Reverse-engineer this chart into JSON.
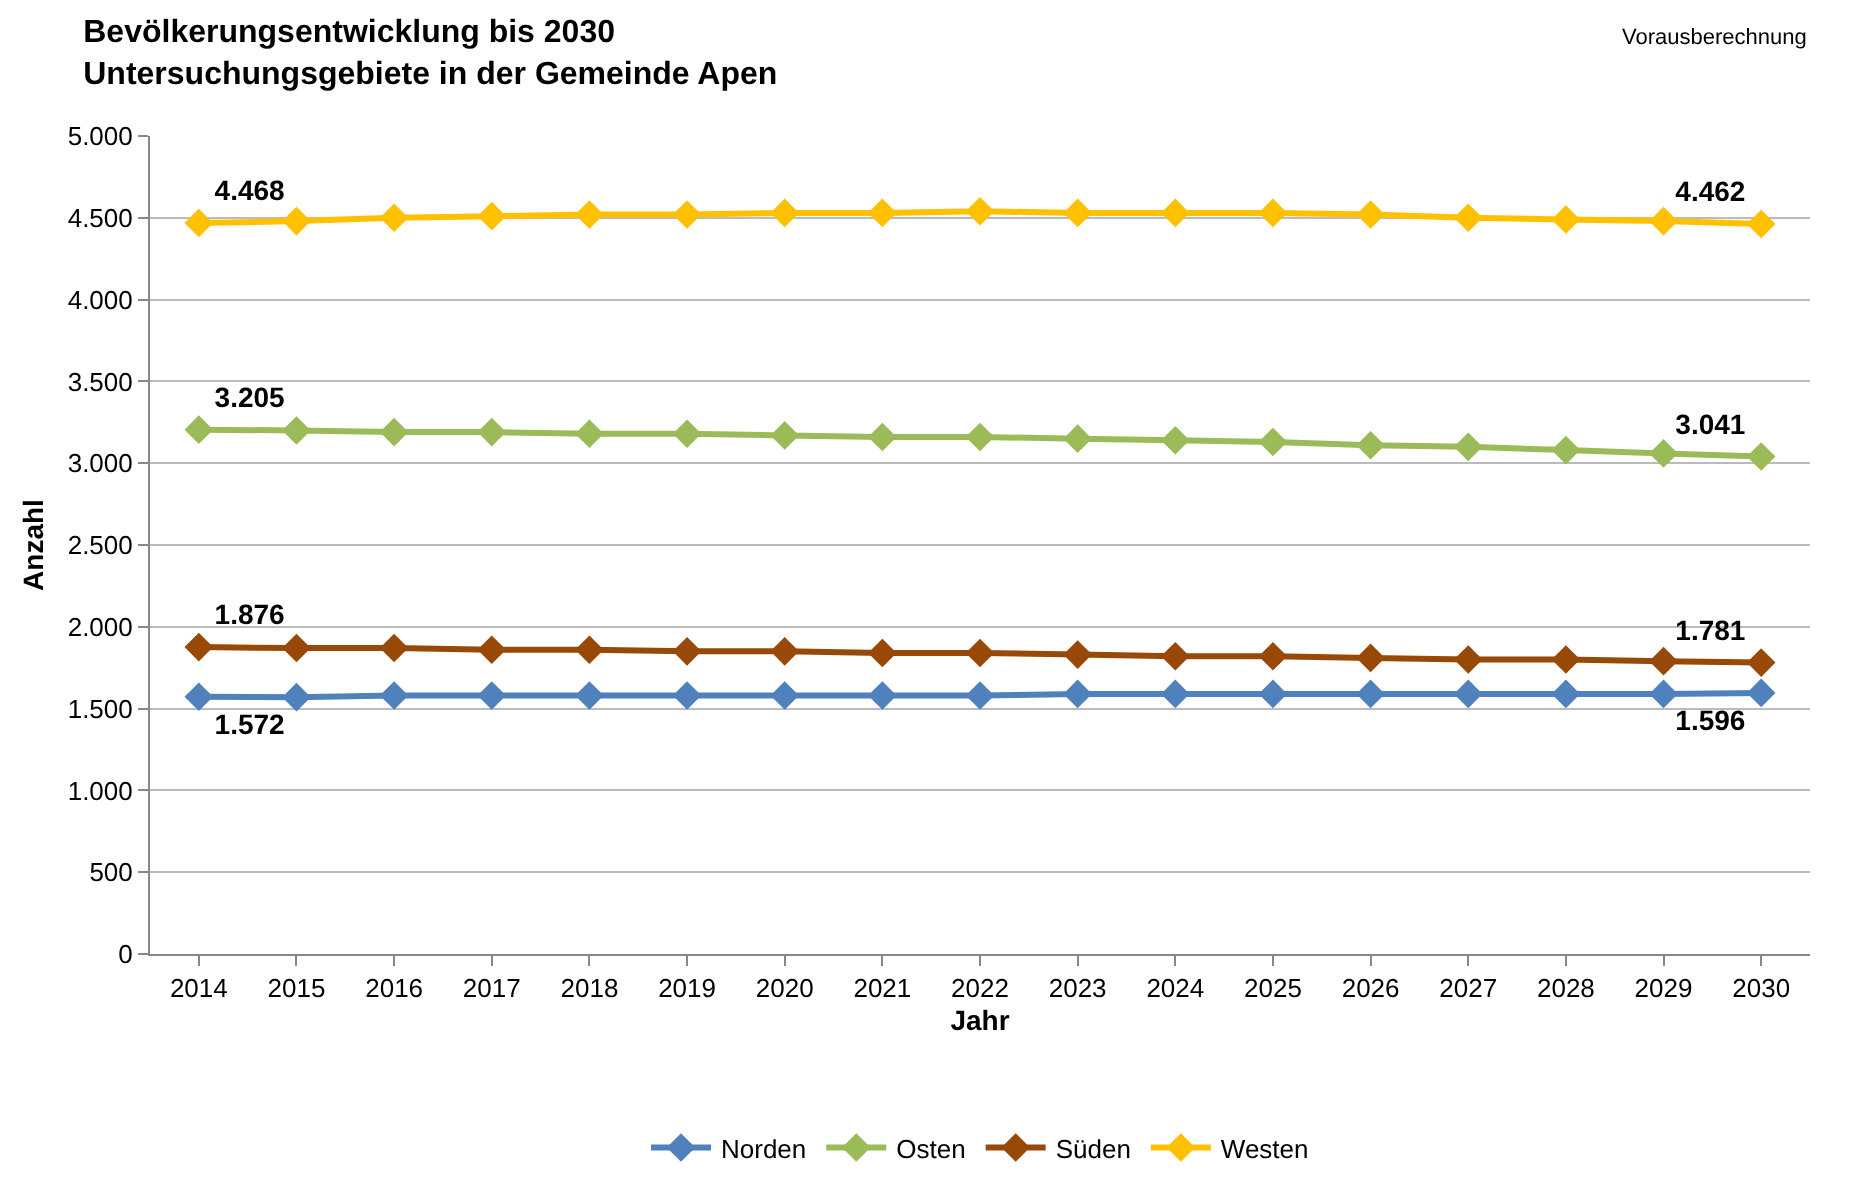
{
  "chart_data": {
    "type": "line",
    "title": "Bevölkerungsentwicklung bis 2030\nUntersuchungsgebiete in der Gemeinde Apen",
    "xlabel": "Jahr",
    "ylabel": "Anzahl",
    "annotations": [
      "Vorausberechnung"
    ],
    "categories": [
      "2014",
      "2015",
      "2016",
      "2017",
      "2018",
      "2019",
      "2020",
      "2021",
      "2022",
      "2023",
      "2024",
      "2025",
      "2026",
      "2027",
      "2028",
      "2029",
      "2030"
    ],
    "series": [
      {
        "name": "Norden",
        "color": "#4f81bd",
        "values": [
          1572,
          1570,
          1580,
          1580,
          1580,
          1580,
          1580,
          1580,
          1580,
          1590,
          1590,
          1590,
          1590,
          1590,
          1590,
          1590,
          1596
        ],
        "value_labels": [
          "1.572",
          null,
          null,
          null,
          null,
          null,
          null,
          null,
          null,
          null,
          null,
          null,
          null,
          null,
          null,
          null,
          "1.596"
        ]
      },
      {
        "name": "Osten",
        "color": "#9bbb59",
        "values": [
          3205,
          3200,
          3190,
          3190,
          3180,
          3180,
          3170,
          3160,
          3160,
          3150,
          3140,
          3130,
          3110,
          3100,
          3080,
          3060,
          3041
        ],
        "value_labels": [
          "3.205",
          null,
          null,
          null,
          null,
          null,
          null,
          null,
          null,
          null,
          null,
          null,
          null,
          null,
          null,
          null,
          "3.041"
        ]
      },
      {
        "name": "Süden",
        "color": "#984807",
        "values": [
          1876,
          1870,
          1870,
          1860,
          1860,
          1850,
          1850,
          1840,
          1840,
          1830,
          1820,
          1820,
          1810,
          1800,
          1800,
          1790,
          1781
        ],
        "value_labels": [
          "1.876",
          null,
          null,
          null,
          null,
          null,
          null,
          null,
          null,
          null,
          null,
          null,
          null,
          null,
          null,
          null,
          "1.781"
        ]
      },
      {
        "name": "Westen",
        "color": "#ffc000",
        "values": [
          4468,
          4480,
          4500,
          4510,
          4520,
          4520,
          4530,
          4530,
          4540,
          4530,
          4530,
          4530,
          4520,
          4500,
          4490,
          4480,
          4462
        ],
        "value_labels": [
          "4.468",
          null,
          null,
          null,
          null,
          null,
          null,
          null,
          null,
          null,
          null,
          null,
          null,
          null,
          null,
          null,
          "4.462"
        ]
      }
    ],
    "ylim": [
      0,
      5000
    ],
    "yticks": [
      {
        "value": 0,
        "label": "0"
      },
      {
        "value": 500,
        "label": "500"
      },
      {
        "value": 1000,
        "label": "1.000"
      },
      {
        "value": 1500,
        "label": "1.500"
      },
      {
        "value": 2000,
        "label": "2.000"
      },
      {
        "value": 2500,
        "label": "2.500"
      },
      {
        "value": 3000,
        "label": "3.000"
      },
      {
        "value": 3500,
        "label": "3.500"
      },
      {
        "value": 4000,
        "label": "4.000"
      },
      {
        "value": 4500,
        "label": "4.500"
      },
      {
        "value": 5000,
        "label": "5.000"
      }
    ],
    "grid": "y",
    "legend": "bottom",
    "marker": "diamond",
    "line_style": "solid"
  }
}
